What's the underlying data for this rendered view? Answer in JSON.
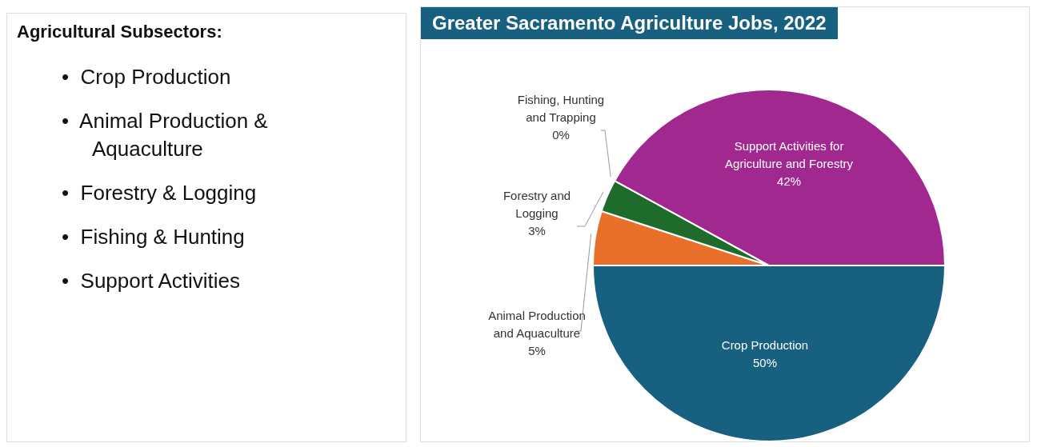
{
  "chart_data": [
    {
      "type": "other",
      "title": "Agricultural Subsectors:",
      "annotations": [
        "•  Crop Production",
        "•  Animal Production & Aquaculture",
        "•  Forestry & Logging",
        "•  Fishing & Hunting",
        "•  Support Activities"
      ]
    },
    {
      "type": "pie",
      "title": "Greater Sacramento Agriculture Jobs, 2022",
      "categories": [
        "Crop Production",
        "Animal Production and Aquaculture",
        "Forestry and Logging",
        "Fishing, Hunting and Trapping",
        "Support Activities for Agriculture and Forestry"
      ],
      "values": [
        50,
        5,
        3,
        0,
        42
      ],
      "colors": [
        "#17607f",
        "#e8702a",
        "#1f6b2c",
        "#5b9bd5",
        "#a0288f"
      ],
      "value_labels": [
        "50%",
        "5%",
        "3%",
        "0%",
        "42%"
      ]
    }
  ]
}
